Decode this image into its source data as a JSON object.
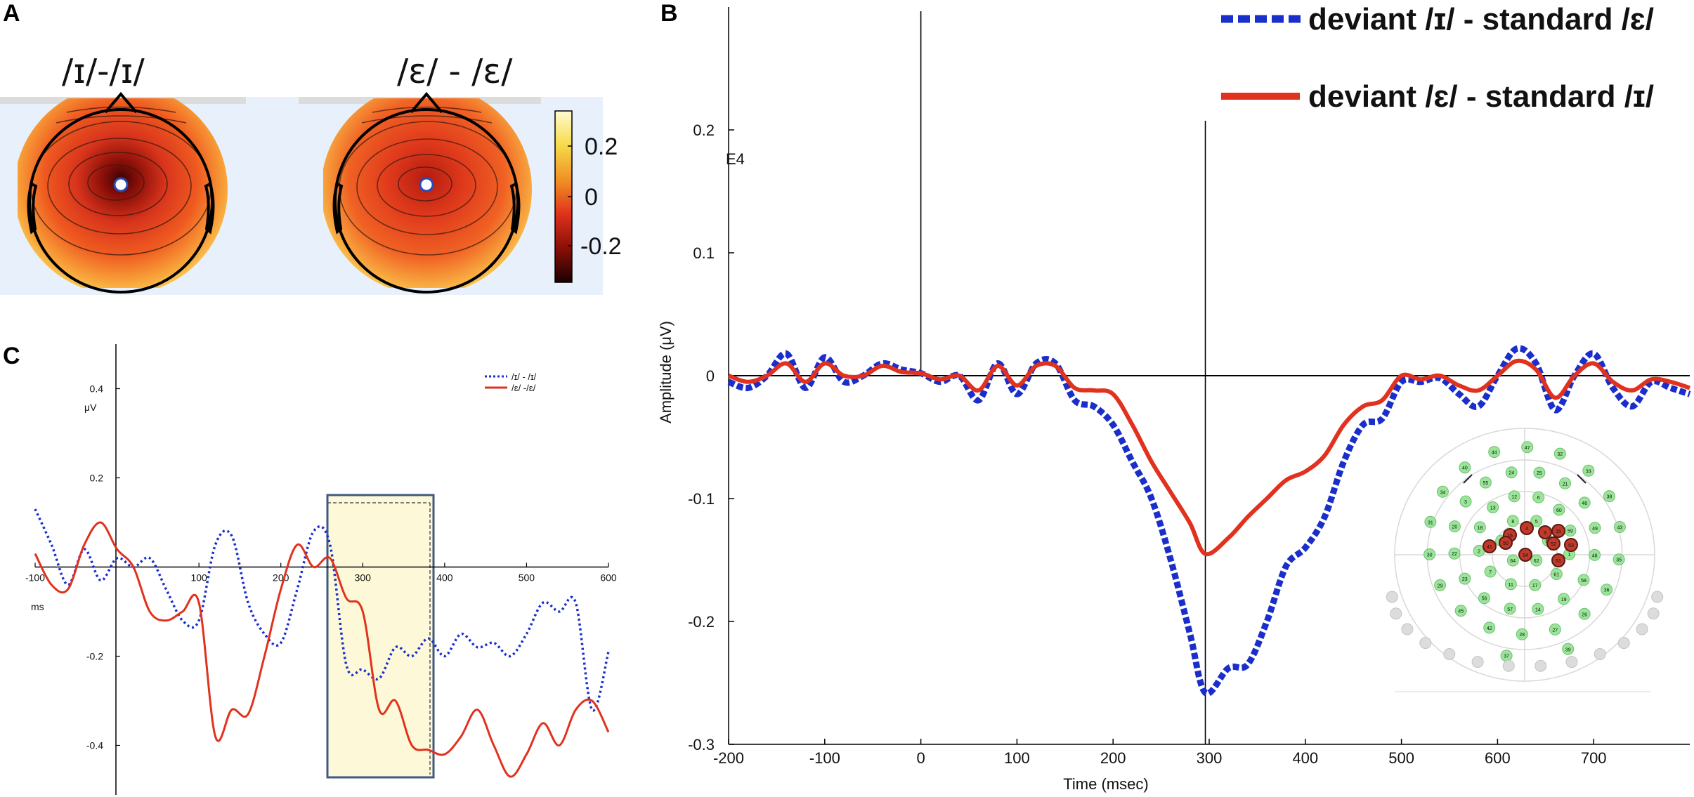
{
  "panels": {
    "a": "A",
    "b": "B",
    "c": "C"
  },
  "topo": {
    "title_1": "/ɪ/-/ɪ/",
    "title_2": "/ɛ/ - /ɛ/",
    "colorbar_ticks": [
      "0.2",
      "0",
      "-0.2"
    ]
  },
  "colors": {
    "blue": "#1a2ecc",
    "red": "#e0321e",
    "box_fill": "#fdf9d8",
    "box_stroke": "#3d5a80"
  },
  "chart_data": [
    {
      "id": "B",
      "type": "line",
      "channel_label": "E4",
      "title": "",
      "xlabel": "Time (msec)",
      "ylabel": "Amplitude (μV)",
      "xlim": [
        -200,
        800
      ],
      "ylim": [
        -0.3,
        0.3
      ],
      "x_ticks": [
        -200,
        -100,
        0,
        100,
        200,
        300,
        400,
        500,
        600,
        700
      ],
      "y_ticks": [
        0.2,
        0.1,
        0,
        -0.1,
        -0.2,
        -0.3
      ],
      "y_tick_labels": [
        "0.2",
        "0.1",
        "0",
        "-0.1",
        "-0.2",
        "-0.3"
      ],
      "x_tick_labels": [
        "-200",
        "-100",
        "0",
        "100",
        "200",
        "300",
        "400",
        "500",
        "600",
        "700"
      ],
      "vlines": [
        0,
        296
      ],
      "legend": [
        "deviant /ɪ/ - standard /ɛ/",
        "deviant /ɛ/ - standard /ɪ/"
      ],
      "series": [
        {
          "name": "deviant /ɪ/ - standard /ɛ/",
          "style": "dashed",
          "x": [
            -200,
            -180,
            -160,
            -140,
            -120,
            -100,
            -80,
            -60,
            -40,
            -20,
            0,
            20,
            40,
            60,
            80,
            100,
            120,
            140,
            160,
            180,
            200,
            220,
            240,
            260,
            280,
            296,
            320,
            340,
            360,
            380,
            400,
            420,
            440,
            460,
            480,
            500,
            520,
            540,
            560,
            580,
            600,
            620,
            640,
            660,
            680,
            700,
            720,
            740,
            760,
            780,
            800
          ],
          "values": [
            -0.005,
            -0.01,
            0.0,
            0.018,
            -0.01,
            0.015,
            -0.005,
            0.0,
            0.01,
            0.005,
            0.002,
            -0.005,
            0.0,
            -0.02,
            0.01,
            -0.015,
            0.01,
            0.01,
            -0.02,
            -0.025,
            -0.04,
            -0.07,
            -0.1,
            -0.15,
            -0.21,
            -0.258,
            -0.238,
            -0.235,
            -0.2,
            -0.155,
            -0.14,
            -0.115,
            -0.07,
            -0.04,
            -0.035,
            -0.005,
            -0.005,
            -0.002,
            -0.015,
            -0.025,
            0.0,
            0.022,
            0.01,
            -0.028,
            0.0,
            0.018,
            -0.01,
            -0.025,
            -0.005,
            -0.01,
            -0.015
          ]
        },
        {
          "name": "deviant /ɛ/ - standard /ɪ/",
          "style": "solid",
          "x": [
            -200,
            -180,
            -160,
            -140,
            -120,
            -100,
            -80,
            -60,
            -40,
            -20,
            0,
            20,
            40,
            60,
            80,
            100,
            120,
            140,
            160,
            180,
            200,
            220,
            240,
            260,
            280,
            296,
            320,
            340,
            360,
            380,
            400,
            420,
            440,
            460,
            480,
            500,
            520,
            540,
            560,
            580,
            600,
            620,
            640,
            660,
            680,
            700,
            720,
            740,
            760,
            780,
            800
          ],
          "values": [
            0.0,
            -0.005,
            0.0,
            0.01,
            -0.005,
            0.01,
            0.0,
            0.0,
            0.008,
            0.003,
            0.002,
            -0.003,
            0.0,
            -0.012,
            0.008,
            -0.008,
            0.008,
            0.008,
            -0.01,
            -0.012,
            -0.015,
            -0.04,
            -0.07,
            -0.095,
            -0.12,
            -0.145,
            -0.132,
            -0.115,
            -0.1,
            -0.085,
            -0.078,
            -0.065,
            -0.04,
            -0.025,
            -0.02,
            0.0,
            -0.003,
            0.0,
            -0.008,
            -0.012,
            0.0,
            0.012,
            0.005,
            -0.018,
            0.0,
            0.01,
            -0.005,
            -0.012,
            -0.003,
            -0.005,
            -0.01
          ]
        }
      ]
    },
    {
      "id": "C",
      "type": "line",
      "title": "",
      "xlabel": "ms",
      "ylabel": "μV",
      "xlim": [
        -100,
        600
      ],
      "ylim": [
        -0.5,
        0.5
      ],
      "x_ticks": [
        -100,
        100,
        200,
        300,
        400,
        500,
        600
      ],
      "x_tick_labels": [
        "-100",
        "100",
        "200",
        "300",
        "400",
        "500",
        "600"
      ],
      "y_ticks": [
        0.4,
        0.2,
        -0.2,
        -0.4
      ],
      "y_tick_labels": [
        "0.4",
        "0.2",
        "-0.2",
        "-0.4"
      ],
      "highlight_range": [
        260,
        390
      ],
      "legend": [
        "/ɪ/ - /ɪ/",
        "/ɛ/ -/ɛ/"
      ],
      "series": [
        {
          "name": "/ɪ/ - /ɪ/",
          "style": "dotted",
          "x": [
            -100,
            -80,
            -60,
            -40,
            -20,
            0,
            20,
            40,
            60,
            80,
            100,
            120,
            140,
            160,
            180,
            200,
            220,
            240,
            260,
            280,
            300,
            320,
            340,
            360,
            380,
            400,
            420,
            440,
            460,
            480,
            500,
            520,
            540,
            560,
            580,
            600
          ],
          "values": [
            0.13,
            0.05,
            -0.04,
            0.04,
            -0.03,
            0.02,
            0.0,
            0.02,
            -0.05,
            -0.12,
            -0.12,
            0.05,
            0.07,
            -0.08,
            -0.15,
            -0.17,
            -0.05,
            0.08,
            0.05,
            -0.22,
            -0.23,
            -0.25,
            -0.18,
            -0.2,
            -0.16,
            -0.2,
            -0.15,
            -0.18,
            -0.17,
            -0.2,
            -0.15,
            -0.08,
            -0.1,
            -0.08,
            -0.32,
            -0.19
          ]
        },
        {
          "name": "/ɛ/ -/ɛ/",
          "style": "solid",
          "x": [
            -100,
            -80,
            -60,
            -40,
            -20,
            0,
            20,
            40,
            60,
            80,
            100,
            120,
            140,
            160,
            180,
            200,
            220,
            240,
            260,
            280,
            300,
            320,
            340,
            360,
            380,
            400,
            420,
            440,
            460,
            480,
            500,
            520,
            540,
            560,
            580,
            600
          ],
          "values": [
            0.03,
            -0.04,
            -0.05,
            0.05,
            0.1,
            0.04,
            0.0,
            -0.1,
            -0.12,
            -0.1,
            -0.08,
            -0.38,
            -0.32,
            -0.33,
            -0.2,
            -0.05,
            0.05,
            0.0,
            0.02,
            -0.07,
            -0.1,
            -0.32,
            -0.3,
            -0.4,
            -0.41,
            -0.42,
            -0.38,
            -0.32,
            -0.4,
            -0.47,
            -0.42,
            -0.35,
            -0.4,
            -0.32,
            -0.3,
            -0.37
          ]
        }
      ]
    }
  ],
  "electrodes": {
    "labels": [
      "63",
      "62",
      "64",
      "10",
      "8",
      "5",
      "1",
      "61",
      "17",
      "11",
      "7",
      "2",
      "18",
      "13",
      "12",
      "6",
      "60",
      "59",
      "58",
      "19",
      "14",
      "57",
      "56",
      "23",
      "22",
      "20",
      "3",
      "55",
      "24",
      "25",
      "21",
      "46",
      "49",
      "48",
      "26",
      "27",
      "28",
      "42",
      "45",
      "29",
      "30",
      "31",
      "34",
      "40",
      "44",
      "47",
      "32",
      "33",
      "38",
      "43",
      "35",
      "36",
      "39",
      "37",
      "4",
      "9",
      "15",
      "16",
      "41",
      "50",
      "52",
      "53",
      "54",
      "51"
    ],
    "highlighted": [
      "4",
      "9",
      "15",
      "16",
      "41",
      "50",
      "52",
      "53",
      "54",
      "51"
    ]
  }
}
